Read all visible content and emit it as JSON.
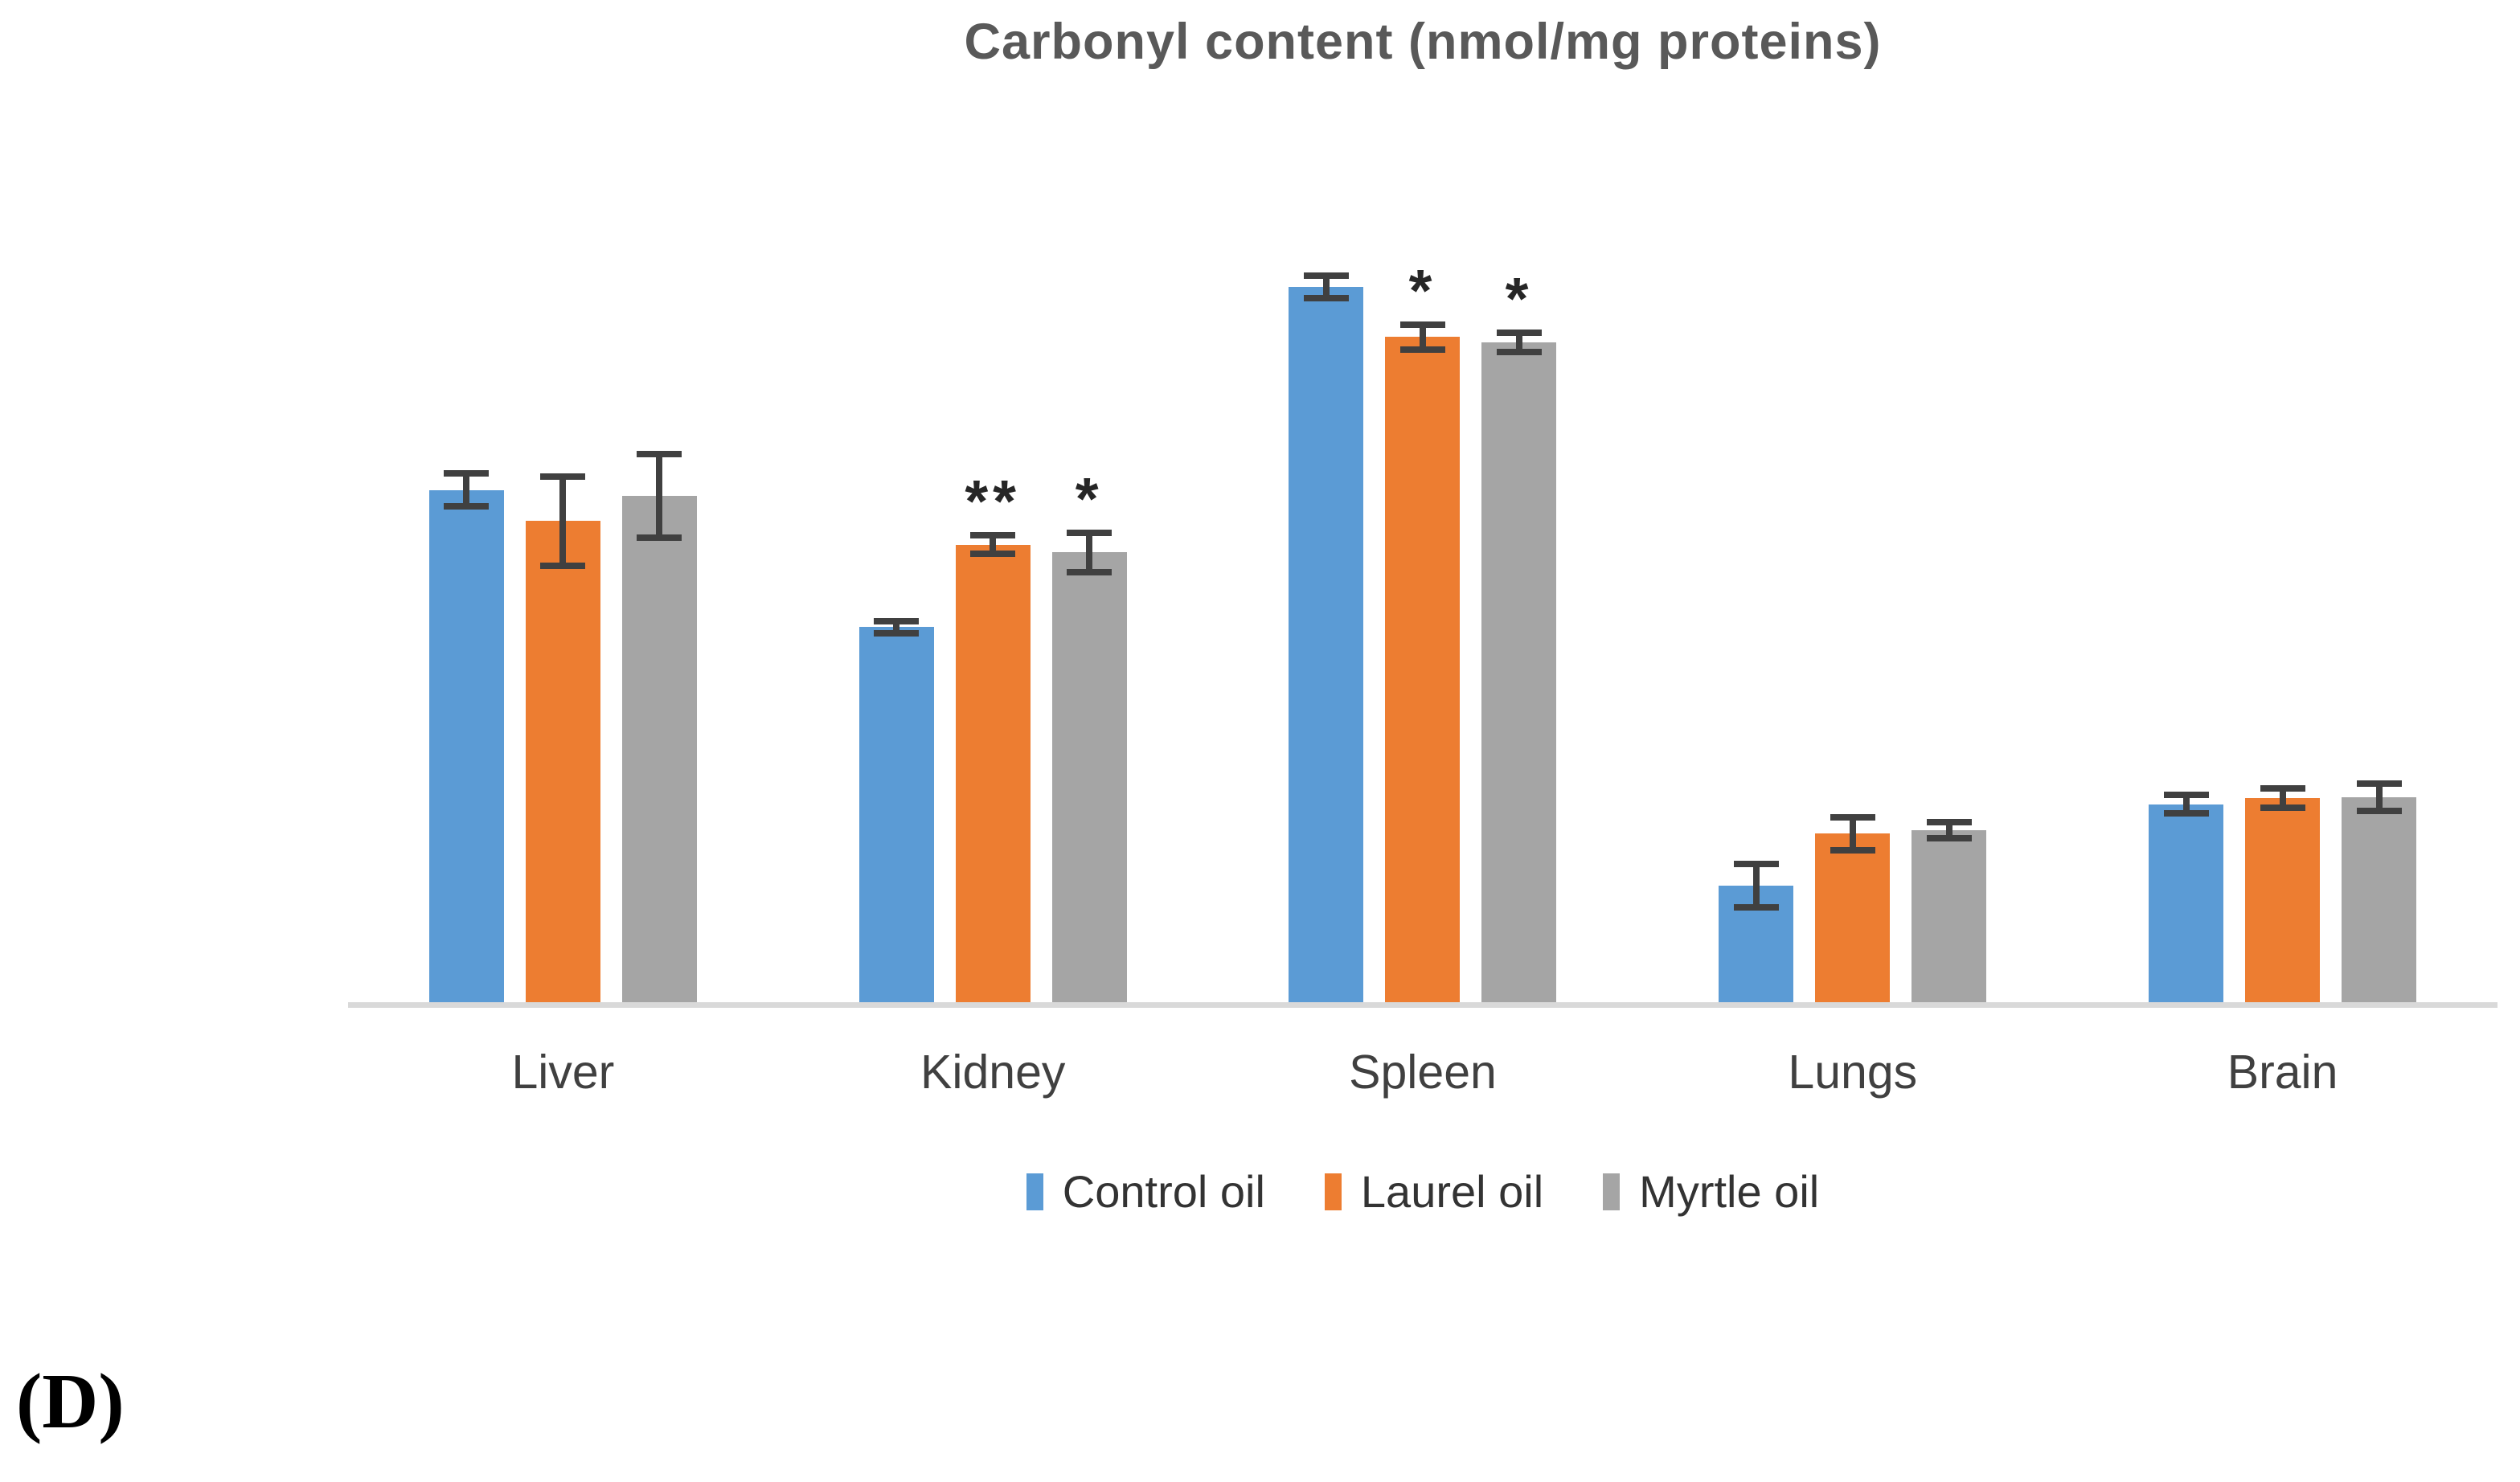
{
  "panel_label": "(D)",
  "colors": {
    "axis_line": "#D9D9D9",
    "error_bar": "#404040",
    "title_text": "#595959",
    "label_text": "#404040"
  },
  "chart_data": {
    "type": "bar",
    "title": "Carbonyl content (nmol/mg proteins)",
    "categories": [
      "Liver",
      "Kidney",
      "Spleen",
      "Lungs",
      "Brain"
    ],
    "series": [
      {
        "name": "Control oil",
        "color": "#5B9BD5",
        "values": [
          59.3,
          43.5,
          82.7,
          13.7,
          23.1
        ],
        "errors": [
          1.9,
          0.7,
          1.3,
          2.5,
          1.1
        ],
        "significance": [
          "",
          "",
          "",
          "",
          ""
        ]
      },
      {
        "name": "Laurel oil",
        "color": "#ED7D31",
        "values": [
          55.7,
          53.0,
          76.9,
          19.7,
          23.8
        ],
        "errors": [
          5.1,
          1.1,
          1.4,
          1.9,
          1.1
        ],
        "significance": [
          "",
          "**",
          "*",
          "",
          ""
        ]
      },
      {
        "name": "Myrtle oil",
        "color": "#A5A5A5",
        "values": [
          58.6,
          52.1,
          76.3,
          20.1,
          23.9
        ],
        "errors": [
          4.8,
          2.3,
          1.1,
          0.9,
          1.6
        ],
        "significance": [
          "",
          "*",
          "*",
          "",
          ""
        ]
      }
    ],
    "ylim": [
      0,
      100
    ],
    "value_scale": "percent-of-plot-height (no y-axis drawn in figure)",
    "y_axis_visible": false,
    "grid": false,
    "legend_position": "bottom"
  }
}
